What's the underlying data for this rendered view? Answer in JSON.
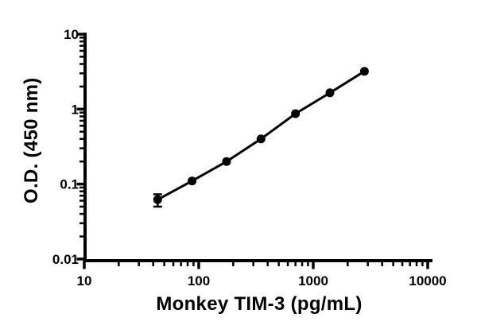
{
  "figure": {
    "background_color": "#ffffff",
    "foreground_color": "#000000"
  },
  "chart_data": {
    "type": "line",
    "title": "",
    "xlabel": "Monkey TIM-3 (pg/mL)",
    "ylabel": "O.D. (450 nm)",
    "x_scale": "log",
    "y_scale": "log",
    "xlim": [
      10,
      10000
    ],
    "ylim": [
      0.01,
      10
    ],
    "grid": false,
    "legend": false,
    "x_ticks": {
      "values": [
        10,
        100,
        1000,
        10000
      ],
      "labels": [
        "10",
        "100",
        "1000",
        "10000"
      ]
    },
    "y_ticks": {
      "values": [
        10,
        1,
        0.1,
        0.01
      ],
      "labels": [
        "10",
        "1",
        "0.1",
        "0.01"
      ]
    },
    "series": [
      {
        "marker": "filled-circle",
        "color": "#000000",
        "points": [
          {
            "x": 43.75,
            "y": 0.062,
            "y_err_low": 0.05,
            "y_err_high": 0.073
          },
          {
            "x": 87.5,
            "y": 0.11
          },
          {
            "x": 175,
            "y": 0.2
          },
          {
            "x": 350,
            "y": 0.4
          },
          {
            "x": 700,
            "y": 0.87
          },
          {
            "x": 1400,
            "y": 1.65
          },
          {
            "x": 2800,
            "y": 3.2
          }
        ]
      }
    ]
  }
}
